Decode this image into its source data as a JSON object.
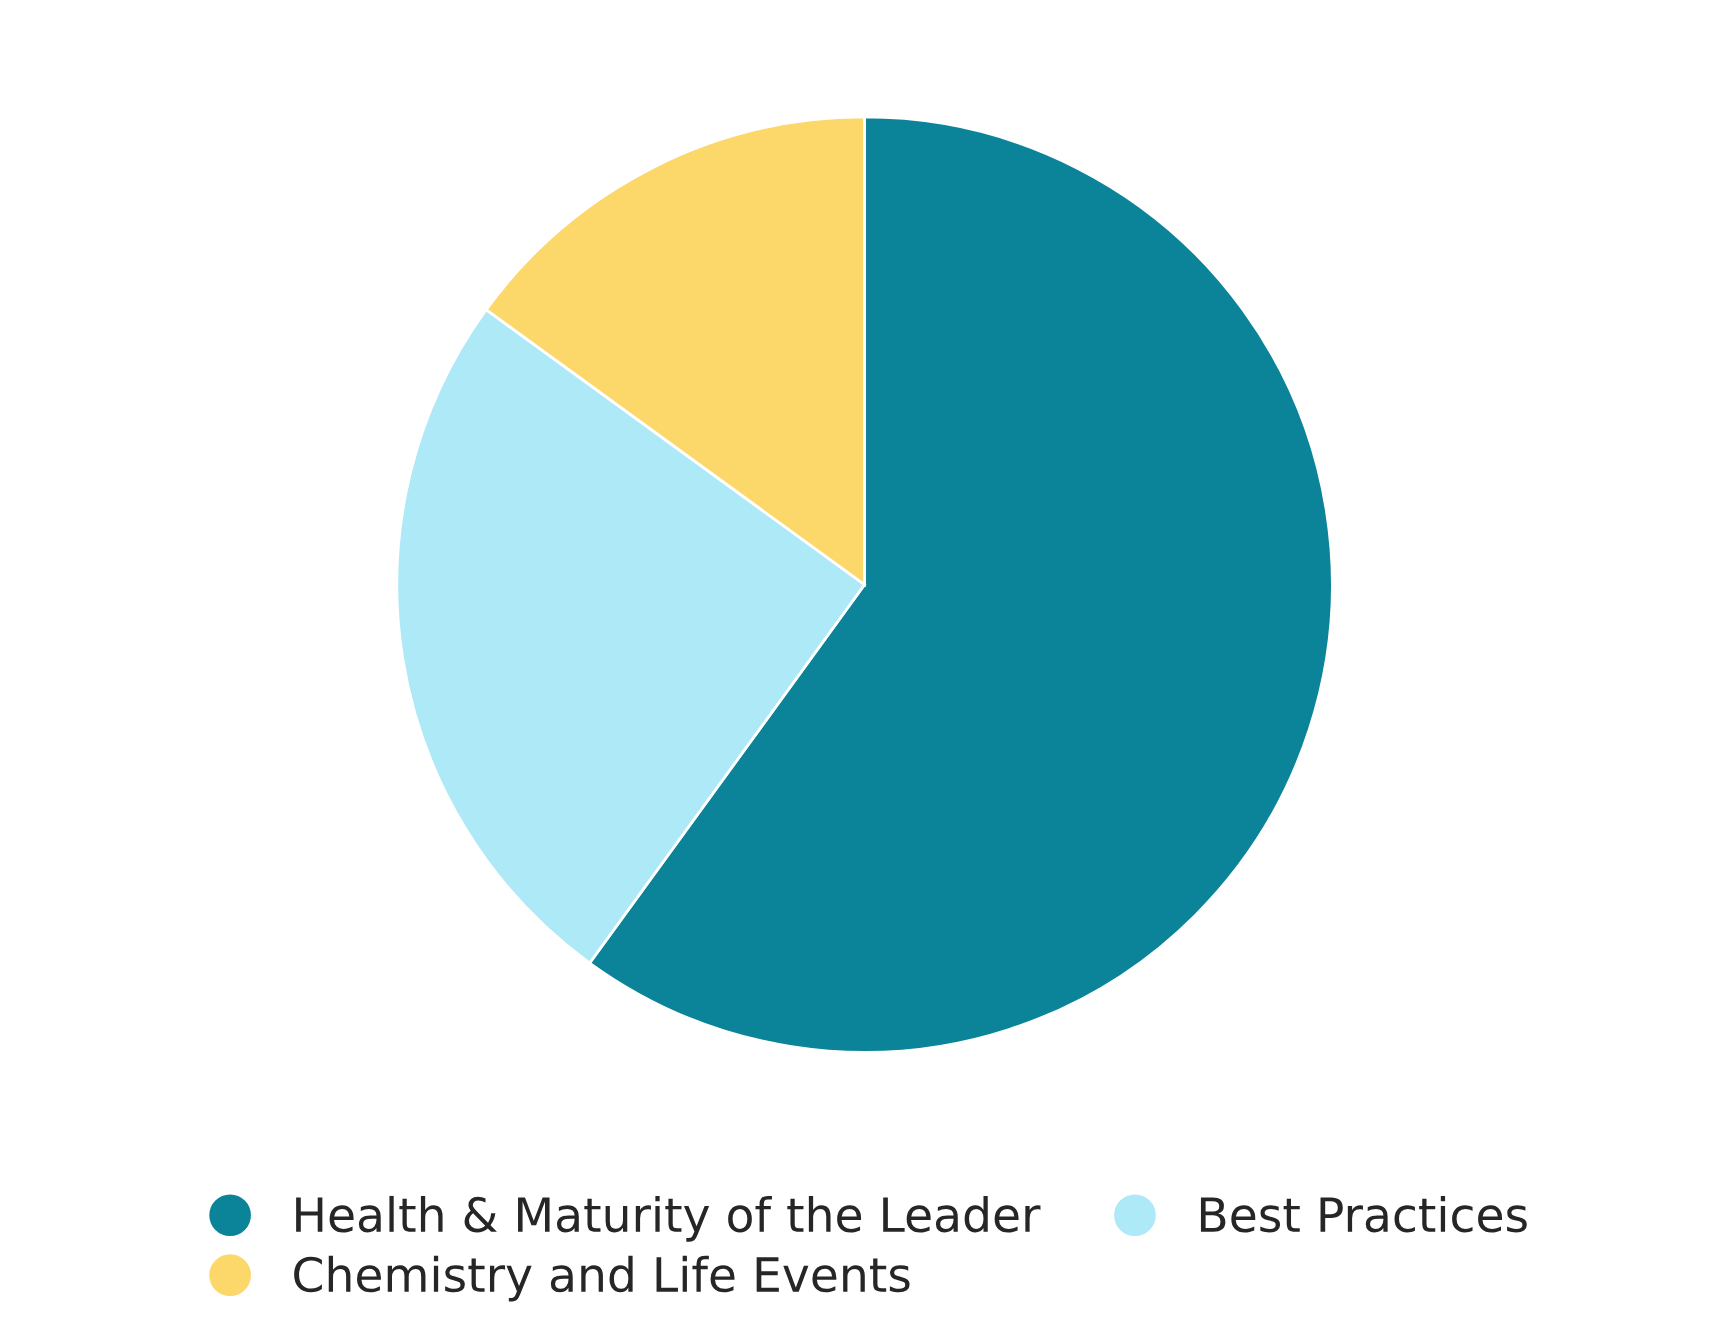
{
  "chart_data": {
    "type": "pie",
    "categories": [
      "Health & Maturity of the Leader",
      "Best Practices",
      "Chemistry and Life Events"
    ],
    "values": [
      60,
      25,
      15
    ],
    "colors": [
      "#0b8399",
      "#aee9f7",
      "#fcd76a"
    ],
    "legend": "bottom"
  }
}
